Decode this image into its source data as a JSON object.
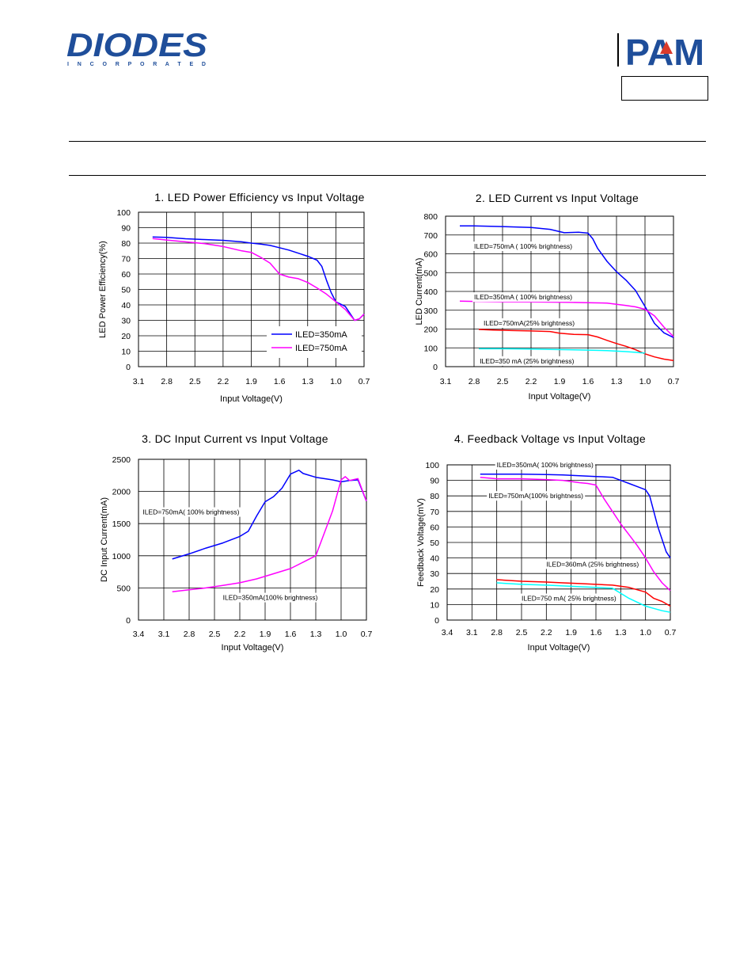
{
  "header": {
    "brand_left": "DIODES",
    "brand_left_sub": "I N C O R P O R A T E D",
    "brand_right": "PAM"
  },
  "colors": {
    "diodes_blue": "#1f4e9a",
    "pam_blue": "#1f4e9a",
    "pam_red": "#d93a2b",
    "blue": "#0000ff",
    "magenta": "#ff00ff",
    "red": "#ff0000",
    "cyan": "#00ffff"
  },
  "chart_data": [
    {
      "type": "line",
      "title": "1. LED Power Efficiency vs Input Voltage",
      "xlabel": "Input Voltage(V)",
      "ylabel": "LED Power Efficiency(%)",
      "xticks": [
        "3.1",
        "2.8",
        "2.5",
        "2.2",
        "1.9",
        "1.6",
        "1.3",
        "1.0",
        "0.7"
      ],
      "xlim": [
        3.1,
        0.7
      ],
      "ylim": [
        0,
        100
      ],
      "yticks": [
        0,
        10,
        20,
        30,
        40,
        50,
        60,
        70,
        80,
        90,
        100
      ],
      "grid": true,
      "legend": "bottom-right",
      "series": [
        {
          "name": "ILED=350mA",
          "color": "#0000ff",
          "x": [
            2.95,
            2.8,
            2.6,
            2.4,
            2.2,
            2.0,
            1.9,
            1.8,
            1.7,
            1.6,
            1.5,
            1.4,
            1.3,
            1.2,
            1.15,
            1.1,
            1.05,
            1.0,
            0.9,
            0.8,
            0.75,
            0.7
          ],
          "y": [
            84,
            83.7,
            82.8,
            82.3,
            81.8,
            80.8,
            80,
            79.4,
            78.5,
            77,
            75.5,
            73.5,
            71.5,
            69,
            65,
            56,
            48,
            42,
            39,
            30,
            31,
            34
          ]
        },
        {
          "name": "ILED=750mA",
          "color": "#ff00ff",
          "x": [
            2.95,
            2.8,
            2.6,
            2.4,
            2.2,
            2.0,
            1.9,
            1.8,
            1.7,
            1.6,
            1.5,
            1.4,
            1.3,
            1.2,
            1.1,
            1.0,
            0.9,
            0.8,
            0.75,
            0.7
          ],
          "y": [
            83,
            82,
            80.8,
            79.7,
            77.8,
            75,
            74,
            70.8,
            67,
            60,
            58,
            57,
            54.5,
            51,
            47,
            42,
            37,
            30,
            31,
            34
          ]
        }
      ],
      "annotations": []
    },
    {
      "type": "line",
      "title": "2. LED Current vs Input Voltage",
      "xlabel": "Input Voltage(V)",
      "ylabel": "LED Current(mA)",
      "xticks": [
        "3.1",
        "2.8",
        "2.5",
        "2.2",
        "1.9",
        "1.6",
        "1.3",
        "1.0",
        "0.7"
      ],
      "xlim": [
        3.1,
        0.7
      ],
      "ylim": [
        0,
        800
      ],
      "yticks": [
        0,
        100,
        200,
        300,
        400,
        500,
        600,
        700,
        800
      ],
      "grid": true,
      "legend": "",
      "series": [
        {
          "name": "ILED=750mA ( 100% brightness)",
          "color": "#0000ff",
          "x": [
            2.95,
            2.8,
            2.5,
            2.2,
            2.0,
            1.85,
            1.7,
            1.6,
            1.55,
            1.5,
            1.4,
            1.3,
            1.2,
            1.1,
            1.0,
            0.9,
            0.8,
            0.7
          ],
          "y": [
            748,
            748,
            745,
            740,
            730,
            712,
            715,
            710,
            680,
            630,
            560,
            505,
            460,
            405,
            320,
            230,
            180,
            155
          ]
        },
        {
          "name": "ILED=350mA ( 100% brightness)",
          "color": "#ff00ff",
          "x": [
            2.95,
            2.8,
            2.5,
            2.2,
            2.0,
            1.8,
            1.6,
            1.4,
            1.3,
            1.2,
            1.1,
            1.0,
            0.9,
            0.8,
            0.7
          ],
          "y": [
            348,
            347,
            345,
            344,
            343,
            342,
            340,
            338,
            332,
            325,
            318,
            305,
            270,
            210,
            160
          ]
        },
        {
          "name": "ILED=750mA(25% brightness)",
          "color": "#ff0000",
          "x": [
            2.75,
            2.6,
            2.4,
            2.2,
            2.0,
            1.9,
            1.75,
            1.6,
            1.5,
            1.4,
            1.3,
            1.2,
            1.1,
            1.0,
            0.9,
            0.8,
            0.7
          ],
          "y": [
            198,
            195,
            192,
            190,
            187,
            178,
            172,
            170,
            158,
            140,
            123,
            108,
            90,
            68,
            52,
            40,
            33
          ]
        },
        {
          "name": "ILED=350 mA (25% brightness)",
          "color": "#00ffff",
          "x": [
            2.75,
            2.5,
            2.2,
            2.0,
            1.8,
            1.6,
            1.4,
            1.2,
            1.1,
            1.0
          ],
          "y": [
            95,
            95,
            94,
            92,
            90,
            88,
            85,
            80,
            76,
            72
          ]
        }
      ],
      "annotations": [
        {
          "text": "ILED=750mA ( 100% brightness)",
          "x": 2.8,
          "y": 640
        },
        {
          "text": "ILED=350mA ( 100% brightness)",
          "x": 2.8,
          "y": 370
        },
        {
          "text": "ILED=750mA(25% brightness)",
          "x": 2.7,
          "y": 232
        },
        {
          "text": "ILED=350 mA (25% brightness)",
          "x": 2.74,
          "y": 30
        }
      ]
    },
    {
      "type": "line",
      "title": "3. DC Input Current vs Input Voltage",
      "xlabel": "Input Voltage(V)",
      "ylabel": "DC Input Current(mA)",
      "xticks": [
        "3.4",
        "3.1",
        "2.8",
        "2.5",
        "2.2",
        "1.9",
        "1.6",
        "1.3",
        "1.0",
        "0.7"
      ],
      "xlim": [
        3.4,
        0.7
      ],
      "ylim": [
        0,
        2500
      ],
      "yticks": [
        0,
        500,
        1000,
        1500,
        2000,
        2500
      ],
      "grid": true,
      "legend": "",
      "series": [
        {
          "name": "ILED=750mA( 100% brightness)",
          "color": "#0000ff",
          "x": [
            3.0,
            2.8,
            2.6,
            2.4,
            2.2,
            2.1,
            2.0,
            1.9,
            1.8,
            1.7,
            1.6,
            1.5,
            1.45,
            1.3,
            1.2,
            1.1,
            1.0,
            0.9,
            0.8,
            0.7
          ],
          "y": [
            950,
            1030,
            1120,
            1200,
            1300,
            1380,
            1620,
            1840,
            1920,
            2050,
            2270,
            2330,
            2280,
            2220,
            2200,
            2180,
            2150,
            2170,
            2180,
            1850
          ]
        },
        {
          "name": "ILED=350mA(100% brightness)",
          "color": "#ff00ff",
          "x": [
            3.0,
            2.8,
            2.6,
            2.4,
            2.2,
            2.0,
            1.8,
            1.6,
            1.45,
            1.3,
            1.2,
            1.1,
            1.0,
            0.95,
            0.9,
            0.8,
            0.7
          ],
          "y": [
            440,
            470,
            500,
            540,
            580,
            640,
            720,
            800,
            900,
            1000,
            1350,
            1700,
            2180,
            2230,
            2170,
            2200,
            1850
          ]
        }
      ],
      "annotations": [
        {
          "text": "ILED=750mA( 100% brightness)",
          "x": 3.35,
          "y": 1680
        },
        {
          "text": "ILED=350mA(100% brightness)",
          "x": 2.4,
          "y": 350
        }
      ]
    },
    {
      "type": "line",
      "title": "4. Feedback Voltage vs Input Voltage",
      "xlabel": "Input Voltage(V)",
      "ylabel": "Feedback Voltage(mV)",
      "xticks": [
        "3.4",
        "3.1",
        "2.8",
        "2.5",
        "2.2",
        "1.9",
        "1.6",
        "1.3",
        "1.0",
        "0.7"
      ],
      "xlim": [
        3.4,
        0.7
      ],
      "ylim": [
        0,
        100
      ],
      "yticks": [
        0,
        10,
        20,
        30,
        40,
        50,
        60,
        70,
        80,
        90,
        100
      ],
      "grid": true,
      "legend": "",
      "series": [
        {
          "name": "ILED=350mA( 100% brightness)",
          "color": "#0000ff",
          "x": [
            3.0,
            2.8,
            2.5,
            2.2,
            2.0,
            1.8,
            1.6,
            1.4,
            1.3,
            1.2,
            1.1,
            1.0,
            0.95,
            0.9,
            0.85,
            0.8,
            0.75,
            0.7
          ],
          "y": [
            94,
            94,
            94,
            93.8,
            93.5,
            93,
            92.5,
            92,
            90,
            88,
            86,
            84,
            80,
            70,
            60,
            52,
            44,
            40
          ]
        },
        {
          "name": "ILED=750mA(100% brightness)",
          "color": "#ff00ff",
          "x": [
            3.0,
            2.8,
            2.5,
            2.2,
            2.0,
            1.8,
            1.7,
            1.6,
            1.5,
            1.4,
            1.3,
            1.2,
            1.1,
            1.0,
            0.9,
            0.8,
            0.7
          ],
          "y": [
            92,
            91,
            91,
            90.5,
            90,
            88.5,
            88,
            87,
            78,
            70,
            62,
            55,
            48,
            40,
            31,
            24,
            19
          ]
        },
        {
          "name": "ILED=360mA (25% brightness)",
          "color": "#ff0000",
          "x": [
            2.8,
            2.5,
            2.2,
            2.0,
            1.8,
            1.6,
            1.4,
            1.2,
            1.0,
            0.9,
            0.8,
            0.7
          ],
          "y": [
            26,
            25,
            24.5,
            24,
            23.5,
            23,
            22.5,
            21,
            18,
            14,
            12,
            9
          ]
        },
        {
          "name": "ILED=750 mA( 25% brightness)",
          "color": "#00ffff",
          "x": [
            2.8,
            2.5,
            2.2,
            2.0,
            1.8,
            1.6,
            1.4,
            1.2,
            1.0,
            0.9,
            0.8,
            0.7
          ],
          "y": [
            24,
            23,
            22.5,
            22,
            21.5,
            21,
            20.5,
            14,
            9,
            7.5,
            6,
            5
          ]
        }
      ],
      "annotations": [
        {
          "text": "ILED=350mA( 100% brightness)",
          "x": 2.8,
          "y": 100
        },
        {
          "text": "ILED=750mA(100% brightness)",
          "x": 2.9,
          "y": 80
        },
        {
          "text": "ILED=360mA (25% brightness)",
          "x": 2.2,
          "y": 36
        },
        {
          "text": "ILED=750 mA( 25% brightness)",
          "x": 2.5,
          "y": 14
        }
      ]
    }
  ]
}
